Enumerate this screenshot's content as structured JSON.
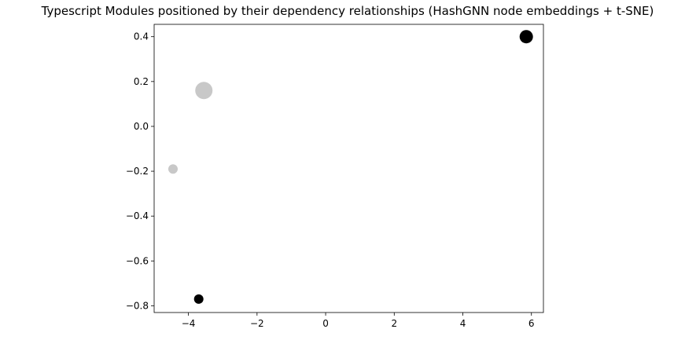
{
  "chart_data": {
    "type": "scatter",
    "title": "Typescript Modules positioned by their dependency relationships (HashGNN node embeddings + t-SNE)",
    "xlabel": "",
    "ylabel": "",
    "xlim": [
      -5.0,
      6.35
    ],
    "ylim": [
      -0.83,
      0.455
    ],
    "x_ticks": [
      -4,
      -2,
      0,
      2,
      4,
      6
    ],
    "x_tick_labels": [
      "−4",
      "−2",
      "0",
      "2",
      "4",
      "6"
    ],
    "y_ticks": [
      -0.8,
      -0.6,
      -0.4,
      -0.2,
      0.0,
      0.2,
      0.4
    ],
    "y_tick_labels": [
      "−0.8",
      "−0.6",
      "−0.4",
      "−0.2",
      "0.0",
      "0.2",
      "0.4"
    ],
    "grid": false,
    "legend": false,
    "points": [
      {
        "x": 5.85,
        "y": 0.4,
        "size": 2,
        "color": "#000000"
      },
      {
        "x": -3.55,
        "y": 0.16,
        "size": 3,
        "color": "#c8c8c8"
      },
      {
        "x": -4.45,
        "y": -0.19,
        "size": 1,
        "color": "#c8c8c8"
      },
      {
        "x": -3.7,
        "y": -0.77,
        "size": 1,
        "color": "#000000"
      }
    ]
  }
}
